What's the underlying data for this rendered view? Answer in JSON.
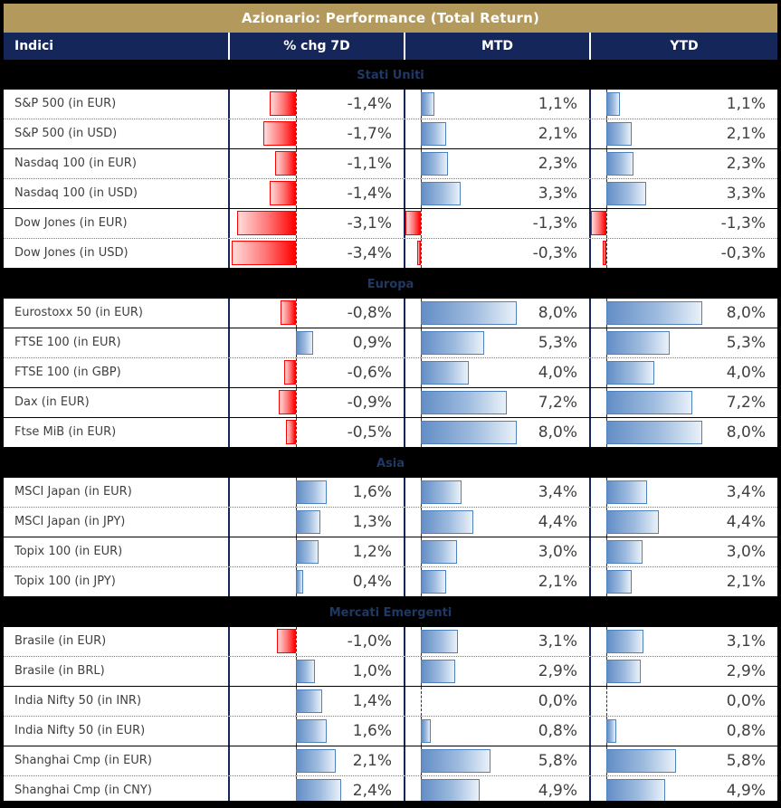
{
  "title": "Azionario: Performance (Total Return)",
  "header": {
    "indici": "Indici",
    "chg7d": "% chg 7D",
    "mtd": "MTD",
    "ytd": "YTD"
  },
  "colors": {
    "title_bg": "#B39A5C",
    "header_bg": "#15265B",
    "section_bg": "#000000",
    "section_text": "#1F3864",
    "positive_bar_border": "#4F81BD",
    "positive_bar_fill_start": "#638EC6",
    "positive_bar_fill_end": "#E9F1F9",
    "negative_bar_border": "#FF0000",
    "negative_bar_fill_start": "#FFDCDC",
    "negative_bar_fill_end": "#FF0000",
    "body_text": "#3F3F3F"
  },
  "chart_data": {
    "type": "table",
    "title": "Azionario: Performance (Total Return)",
    "columns": [
      "Indici",
      "% chg 7D",
      "MTD",
      "YTD"
    ],
    "number_format": "italian-percent-comma-decimal",
    "bar_axes": {
      "chg7d": {
        "negative_color": "red",
        "positive_color": "blue",
        "axis": "dashed-zero-line"
      },
      "mtd": {
        "negative_color": "red",
        "positive_color": "blue",
        "axis": "dashed-zero-line"
      },
      "ytd": {
        "negative_color": "red",
        "positive_color": "blue",
        "axis": "dashed-zero-line"
      }
    },
    "sections": [
      {
        "label": "Stati Uniti",
        "rows": [
          {
            "name": "S&P 500 (in EUR)",
            "chg7d": "-1,4%",
            "mtd": "1,1%",
            "ytd": "1,1%"
          },
          {
            "name": "S&P 500 (in USD)",
            "chg7d": "-1,7%",
            "mtd": "2,1%",
            "ytd": "2,1%"
          },
          {
            "name": "Nasdaq 100 (in EUR)",
            "chg7d": "-1,1%",
            "mtd": "2,3%",
            "ytd": "2,3%"
          },
          {
            "name": "Nasdaq 100 (in USD)",
            "chg7d": "-1,4%",
            "mtd": "3,3%",
            "ytd": "3,3%"
          },
          {
            "name": "Dow Jones (in EUR)",
            "chg7d": "-3,1%",
            "mtd": "-1,3%",
            "ytd": "-1,3%"
          },
          {
            "name": "Dow Jones (in USD)",
            "chg7d": "-3,4%",
            "mtd": "-0,3%",
            "ytd": "-0,3%"
          }
        ]
      },
      {
        "label": "Europa",
        "rows": [
          {
            "name": "Eurostoxx 50 (in EUR)",
            "chg7d": "-0,8%",
            "mtd": "8,0%",
            "ytd": "8,0%"
          },
          {
            "name": "FTSE 100 (in EUR)",
            "chg7d": "0,9%",
            "mtd": "5,3%",
            "ytd": "5,3%"
          },
          {
            "name": "FTSE 100 (in GBP)",
            "chg7d": "-0,6%",
            "mtd": "4,0%",
            "ytd": "4,0%"
          },
          {
            "name": "Dax (in EUR)",
            "chg7d": "-0,9%",
            "mtd": "7,2%",
            "ytd": "7,2%"
          },
          {
            "name": "Ftse MiB (in EUR)",
            "chg7d": "-0,5%",
            "mtd": "8,0%",
            "ytd": "8,0%"
          }
        ]
      },
      {
        "label": "Asia",
        "rows": [
          {
            "name": "MSCI Japan (in EUR)",
            "chg7d": "1,6%",
            "mtd": "3,4%",
            "ytd": "3,4%"
          },
          {
            "name": "MSCI Japan (in JPY)",
            "chg7d": "1,3%",
            "mtd": "4,4%",
            "ytd": "4,4%"
          },
          {
            "name": "Topix 100 (in EUR)",
            "chg7d": "1,2%",
            "mtd": "3,0%",
            "ytd": "3,0%"
          },
          {
            "name": "Topix 100 (in JPY)",
            "chg7d": "0,4%",
            "mtd": "2,1%",
            "ytd": "2,1%"
          }
        ]
      },
      {
        "label": "Mercati Emergenti",
        "rows": [
          {
            "name": "Brasile (in EUR)",
            "chg7d": "-1,0%",
            "mtd": "3,1%",
            "ytd": "3,1%"
          },
          {
            "name": "Brasile (in BRL)",
            "chg7d": "1,0%",
            "mtd": "2,9%",
            "ytd": "2,9%"
          },
          {
            "name": "India Nifty 50 (in INR)",
            "chg7d": "1,4%",
            "mtd": "0,0%",
            "ytd": "0,0%"
          },
          {
            "name": "India Nifty 50 (in EUR)",
            "chg7d": "1,6%",
            "mtd": "0,8%",
            "ytd": "0,8%"
          },
          {
            "name": "Shanghai Cmp (in EUR)",
            "chg7d": "2,1%",
            "mtd": "5,8%",
            "ytd": "5,8%"
          },
          {
            "name": "Shanghai Cmp (in CNY)",
            "chg7d": "2,4%",
            "mtd": "4,9%",
            "ytd": "4,9%"
          }
        ]
      }
    ]
  }
}
